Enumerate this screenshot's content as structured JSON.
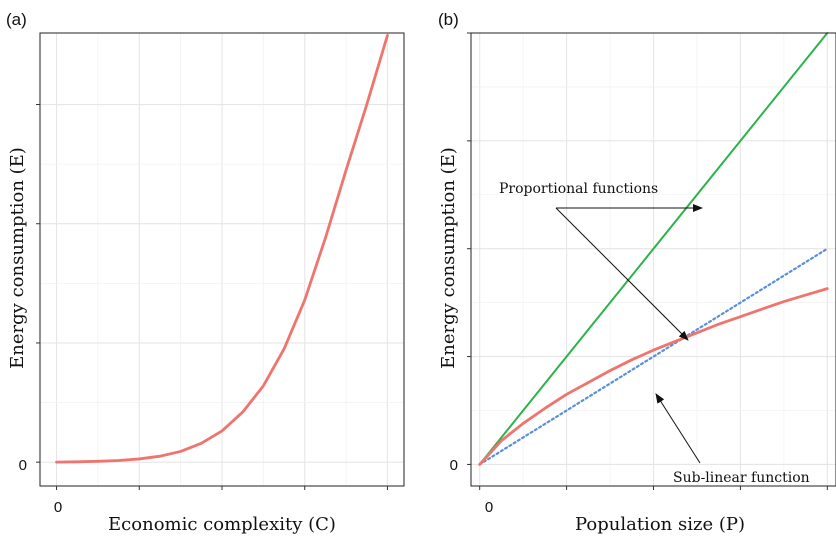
{
  "chart_data": [
    {
      "panel": "(a)",
      "type": "line",
      "xlabel": "Economic complexity (C)",
      "ylabel": "Energy consumption (E)",
      "x_tick_labels": [
        "0"
      ],
      "y_tick_labels": [
        "0"
      ],
      "xlim": [
        -0.2,
        4.2
      ],
      "ylim": [
        -0.2,
        3.6
      ],
      "grid": true,
      "series": [
        {
          "color": "#f0746e",
          "x": [
            0,
            0.25,
            0.5,
            0.75,
            1,
            1.25,
            1.5,
            1.75,
            2,
            2.25,
            2.5,
            2.75,
            3,
            3.25,
            3.5,
            3.75,
            4
          ],
          "y": [
            0,
            0.003,
            0.007,
            0.014,
            0.027,
            0.05,
            0.09,
            0.158,
            0.262,
            0.42,
            0.64,
            0.95,
            1.36,
            1.88,
            2.45,
            3.0,
            3.58
          ]
        }
      ]
    },
    {
      "panel": "(b)",
      "type": "line",
      "xlabel": "Population size (P)",
      "ylabel": "Energy consumption (E)",
      "x_tick_labels": [
        "0"
      ],
      "y_tick_labels": [
        "0"
      ],
      "xlim": [
        -0.1,
        4.1
      ],
      "ylim": [
        -0.2,
        4.0
      ],
      "grid": true,
      "series": [
        {
          "color": "#2bb34a",
          "style": "solid",
          "x": [
            0,
            4
          ],
          "y": [
            0,
            4
          ]
        },
        {
          "color": "#5a8fdc",
          "style": "dotted",
          "x": [
            0,
            4
          ],
          "y": [
            0,
            2
          ]
        },
        {
          "color": "#f0746e",
          "style": "solid",
          "x": [
            0,
            0.25,
            0.5,
            0.75,
            1,
            1.25,
            1.5,
            1.75,
            2,
            2.25,
            2.5,
            2.75,
            3,
            3.25,
            3.5,
            3.75,
            4
          ],
          "y": [
            0,
            0.22,
            0.38,
            0.52,
            0.65,
            0.76,
            0.87,
            0.97,
            1.06,
            1.14,
            1.22,
            1.3,
            1.37,
            1.44,
            1.51,
            1.57,
            1.63
          ]
        }
      ],
      "annotations": [
        {
          "text": "Proportional functions",
          "x": 0.15,
          "y": 2.7
        },
        {
          "text": "Sub-linear function",
          "x": 2.15,
          "y": -0.13
        }
      ]
    }
  ]
}
